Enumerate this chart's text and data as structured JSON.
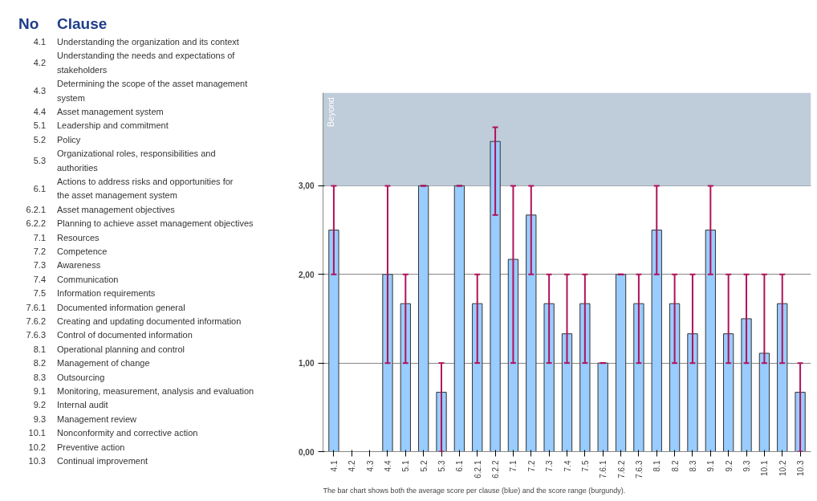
{
  "chart_data": {
    "type": "bar",
    "categories": [
      "4.1",
      "4.2",
      "4.3",
      "4.4",
      "5.1",
      "5.2",
      "5.3",
      "6.1",
      "6.2.1",
      "6.2.2",
      "7.1",
      "7.2",
      "7.3",
      "7.4",
      "7.5",
      "7.6.1",
      "7.6.2",
      "7.6.3",
      "8.1",
      "8.2",
      "8.3",
      "9.1",
      "9.2",
      "9.3",
      "10.1",
      "10.2",
      "10.3"
    ],
    "series": [
      {
        "color": "#99ccff",
        "values": [
          2.5,
          null,
          null,
          2.0,
          1.67,
          3.0,
          0.67,
          3.0,
          1.67,
          3.5,
          2.17,
          2.67,
          1.67,
          1.33,
          1.67,
          1.0,
          2.0,
          1.67,
          2.5,
          1.67,
          1.33,
          2.5,
          1.33,
          1.5,
          1.11,
          1.67,
          0.67
        ],
        "errors": [
          [
            2,
            3
          ],
          null,
          null,
          [
            1,
            3
          ],
          [
            1,
            2
          ],
          [
            3,
            3
          ],
          [
            0,
            1
          ],
          [
            3,
            3
          ],
          [
            1,
            2
          ],
          [
            2.67,
            3.66
          ],
          [
            1,
            3
          ],
          [
            2,
            3
          ],
          [
            1,
            2
          ],
          [
            1,
            2
          ],
          [
            1,
            2
          ],
          [
            1,
            1
          ],
          [
            2,
            2
          ],
          [
            1,
            2
          ],
          [
            2,
            3
          ],
          [
            1,
            2
          ],
          [
            1,
            2
          ],
          [
            2,
            3
          ],
          [
            1,
            2
          ],
          [
            1,
            2
          ],
          [
            1,
            2
          ],
          [
            1,
            2
          ],
          [
            0,
            1
          ]
        ]
      }
    ],
    "ylim": [
      0,
      4.05
    ],
    "yticks": [
      {
        "value": 0,
        "label": "0,00"
      },
      {
        "value": 1,
        "label": "1,00"
      },
      {
        "value": 2,
        "label": "2,00"
      },
      {
        "value": 3,
        "label": "3,00"
      }
    ],
    "grid": "y",
    "bands": [
      {
        "axis": "y",
        "from": 3,
        "to": 4.05,
        "label": "Beyond",
        "color": "#bfccd9"
      }
    ],
    "annotations": [
      "The bar chart shows both the average score per clause (blue) and the score range (burgundy).",
      "No Clause",
      "4.1 Understanding the organization and its context",
      "4.2 Understanding the needs and expectations of stakeholders",
      "4.3 Determining the scope of the asset management system",
      "4.4 Asset management system",
      "5.1 Leadership and commitment",
      "5.2 Policy",
      "5.3 Organizational roles, responsibilities and authorities",
      "6.1 Actions to address risks and opportunities for the asset management system",
      "6.2.1 Asset management objectives",
      "6.2.2 Planning to achieve asset management objectives",
      "7.1 Resources",
      "7.2 Competence",
      "7.3 Awareness",
      "7.4 Communication",
      "7.5 Information requirements",
      "7.6.1 Documented information general",
      "7.6.2 Creating and updating documented information",
      "7.6.3 Control of documented information",
      "8.1 Operational planning and control",
      "8.2 Management of change",
      "8.3 Outsourcing",
      "9.1 Monitoring, measurement, analysis and evaluation",
      "9.2 Internal audit",
      "9.3 Management review",
      "10.1 Nonconformity and corrective action",
      "10.2 Preventive action",
      "10.3 Continual improvement"
    ]
  }
}
